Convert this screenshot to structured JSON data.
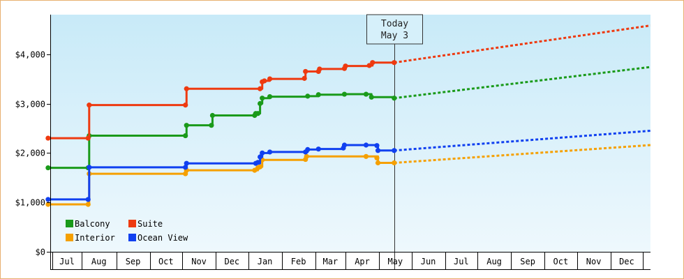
{
  "chart_data": {
    "type": "line",
    "title": "",
    "xlabel": "",
    "ylabel": "",
    "ylim": [
      0,
      4800
    ],
    "yticks": [
      0,
      1000,
      2000,
      3000,
      4000
    ],
    "ytick_labels": [
      "$0",
      "$1,000",
      "$2,000",
      "$3,000",
      "$4,000"
    ],
    "x_months": [
      "Jul",
      "Aug",
      "Sep",
      "Oct",
      "Nov",
      "Dec",
      "Jan",
      "Feb",
      "Mar",
      "Apr",
      "May",
      "Jun",
      "Jul",
      "Aug",
      "Sep",
      "Oct",
      "Nov",
      "Dec"
    ],
    "xlim_days": [
      0,
      555
    ],
    "today_day": 318,
    "today_label": [
      "Today",
      "May 3"
    ],
    "grid": false,
    "legend_position": "bottom-left",
    "background_gradient": [
      "#c8eaf8",
      "#eef8fd"
    ],
    "series": [
      {
        "name": "Balcony",
        "color": "#1a9a1a",
        "history": [
          [
            -2,
            1700
          ],
          [
            35,
            1700
          ],
          [
            36,
            2350
          ],
          [
            125,
            2350
          ],
          [
            126,
            2560
          ],
          [
            149,
            2560
          ],
          [
            150,
            2760
          ],
          [
            189,
            2760
          ],
          [
            190,
            2800
          ],
          [
            194,
            3000
          ],
          [
            196,
            3110
          ],
          [
            203,
            3140
          ],
          [
            238,
            3150
          ],
          [
            248,
            3180
          ],
          [
            272,
            3190
          ],
          [
            292,
            3190
          ],
          [
            297,
            3130
          ],
          [
            318,
            3110
          ]
        ],
        "markers": [
          [
            -2,
            1700
          ],
          [
            35,
            1700
          ],
          [
            36,
            2350
          ],
          [
            125,
            2350
          ],
          [
            126,
            2560
          ],
          [
            149,
            2560
          ],
          [
            150,
            2760
          ],
          [
            189,
            2760
          ],
          [
            190,
            2800
          ],
          [
            192,
            2800
          ],
          [
            194,
            3000
          ],
          [
            196,
            3110
          ],
          [
            203,
            3140
          ],
          [
            238,
            3150
          ],
          [
            248,
            3180
          ],
          [
            272,
            3190
          ],
          [
            292,
            3190
          ],
          [
            297,
            3130
          ],
          [
            318,
            3110
          ]
        ],
        "projection": [
          [
            318,
            3110
          ],
          [
            555,
            3740
          ]
        ]
      },
      {
        "name": "Suite",
        "color": "#ee3a10",
        "history": [
          [
            -2,
            2300
          ],
          [
            35,
            2300
          ],
          [
            36,
            2970
          ],
          [
            125,
            2970
          ],
          [
            126,
            3300
          ],
          [
            194,
            3300
          ],
          [
            196,
            3440
          ],
          [
            198,
            3460
          ],
          [
            203,
            3500
          ],
          [
            235,
            3510
          ],
          [
            236,
            3650
          ],
          [
            248,
            3650
          ],
          [
            249,
            3700
          ],
          [
            272,
            3710
          ],
          [
            273,
            3760
          ],
          [
            295,
            3770
          ],
          [
            298,
            3830
          ],
          [
            318,
            3830
          ]
        ],
        "markers": [
          [
            -2,
            2300
          ],
          [
            35,
            2300
          ],
          [
            36,
            2970
          ],
          [
            125,
            2970
          ],
          [
            126,
            3300
          ],
          [
            194,
            3300
          ],
          [
            196,
            3440
          ],
          [
            198,
            3460
          ],
          [
            203,
            3500
          ],
          [
            235,
            3510
          ],
          [
            236,
            3650
          ],
          [
            248,
            3650
          ],
          [
            249,
            3700
          ],
          [
            272,
            3710
          ],
          [
            273,
            3760
          ],
          [
            295,
            3770
          ],
          [
            298,
            3830
          ],
          [
            318,
            3830
          ]
        ],
        "projection": [
          [
            318,
            3830
          ],
          [
            555,
            4580
          ]
        ]
      },
      {
        "name": "Interior",
        "color": "#f5a000",
        "history": [
          [
            -2,
            960
          ],
          [
            35,
            960
          ],
          [
            36,
            1580
          ],
          [
            125,
            1580
          ],
          [
            126,
            1650
          ],
          [
            189,
            1650
          ],
          [
            192,
            1700
          ],
          [
            194,
            1720
          ],
          [
            196,
            1860
          ],
          [
            236,
            1870
          ],
          [
            237,
            1930
          ],
          [
            292,
            1930
          ],
          [
            303,
            1800
          ],
          [
            318,
            1800
          ]
        ],
        "markers": [
          [
            -2,
            960
          ],
          [
            35,
            960
          ],
          [
            36,
            1580
          ],
          [
            125,
            1580
          ],
          [
            126,
            1650
          ],
          [
            189,
            1650
          ],
          [
            192,
            1700
          ],
          [
            194,
            1720
          ],
          [
            196,
            1860
          ],
          [
            236,
            1870
          ],
          [
            237,
            1930
          ],
          [
            292,
            1930
          ],
          [
            302,
            1900
          ],
          [
            303,
            1800
          ],
          [
            318,
            1800
          ]
        ],
        "projection": [
          [
            318,
            1800
          ],
          [
            555,
            2160
          ]
        ]
      },
      {
        "name": "Ocean View",
        "color": "#1040f0",
        "history": [
          [
            -2,
            1060
          ],
          [
            35,
            1060
          ],
          [
            36,
            1710
          ],
          [
            125,
            1710
          ],
          [
            126,
            1790
          ],
          [
            190,
            1790
          ],
          [
            194,
            1920
          ],
          [
            196,
            2000
          ],
          [
            203,
            2020
          ],
          [
            236,
            2020
          ],
          [
            238,
            2070
          ],
          [
            248,
            2080
          ],
          [
            271,
            2100
          ],
          [
            272,
            2160
          ],
          [
            292,
            2160
          ],
          [
            302,
            2150
          ],
          [
            303,
            2050
          ],
          [
            318,
            2050
          ]
        ],
        "markers": [
          [
            -2,
            1060
          ],
          [
            35,
            1060
          ],
          [
            36,
            1710
          ],
          [
            125,
            1710
          ],
          [
            126,
            1790
          ],
          [
            190,
            1790
          ],
          [
            192,
            1810
          ],
          [
            194,
            1920
          ],
          [
            196,
            2000
          ],
          [
            203,
            2020
          ],
          [
            236,
            2020
          ],
          [
            238,
            2070
          ],
          [
            248,
            2080
          ],
          [
            271,
            2100
          ],
          [
            272,
            2160
          ],
          [
            292,
            2160
          ],
          [
            302,
            2150
          ],
          [
            303,
            2050
          ],
          [
            318,
            2050
          ]
        ],
        "projection": [
          [
            318,
            2050
          ],
          [
            555,
            2450
          ]
        ]
      }
    ]
  }
}
